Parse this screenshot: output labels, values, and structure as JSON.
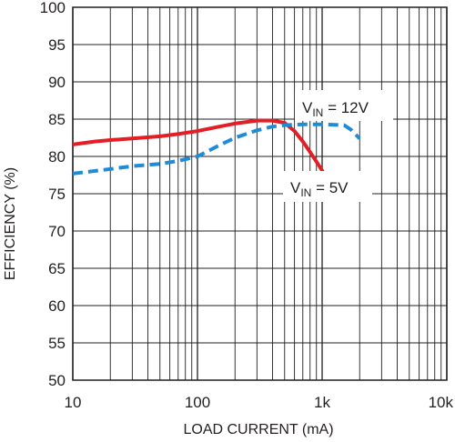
{
  "chart_data": {
    "type": "line",
    "title": "",
    "xlabel": "LOAD CURRENT (mA)",
    "ylabel": "EFFICIENCY (%)",
    "xscale": "log",
    "xlim": [
      10,
      10000
    ],
    "ylim": [
      50,
      100
    ],
    "x_tick_values": [
      10,
      100,
      1000,
      10000
    ],
    "x_tick_labels": [
      "10",
      "100",
      "1k",
      "10k"
    ],
    "y_tick_values": [
      50,
      55,
      60,
      65,
      70,
      75,
      80,
      85,
      90,
      95,
      100
    ],
    "y_tick_labels": [
      "50",
      "55",
      "60",
      "65",
      "70",
      "75",
      "80",
      "85",
      "90",
      "95",
      "100"
    ],
    "grid": true,
    "series": [
      {
        "label_main": "V",
        "label_sub": "IN",
        "label_rest": " = 5V",
        "color": "#e31e24",
        "style": "solid",
        "x": [
          10,
          15,
          20,
          30,
          50,
          70,
          100,
          150,
          200,
          300,
          400,
          500,
          600,
          700,
          800,
          900,
          1000,
          1080
        ],
        "y": [
          81.6,
          82.0,
          82.2,
          82.4,
          82.7,
          83.0,
          83.4,
          84.0,
          84.4,
          84.8,
          84.8,
          84.5,
          83.4,
          82.0,
          80.6,
          79.3,
          78.1,
          77.1
        ]
      },
      {
        "label_main": "V",
        "label_sub": "IN",
        "label_rest": " = 12V",
        "color": "#1f8dd6",
        "style": "dashed",
        "x": [
          10,
          20,
          30,
          50,
          70,
          100,
          150,
          200,
          300,
          400,
          500,
          700,
          1000,
          1500,
          1700,
          2000
        ],
        "y": [
          77.7,
          78.3,
          78.7,
          79.0,
          79.4,
          80.0,
          81.5,
          82.5,
          83.5,
          84.0,
          84.2,
          84.3,
          84.3,
          84.2,
          83.6,
          82.4
        ]
      }
    ]
  }
}
